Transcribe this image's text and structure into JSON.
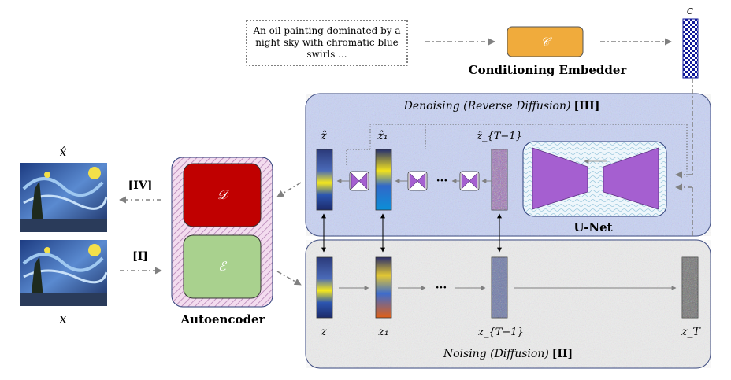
{
  "prompt": {
    "line1": "An oil painting dominated by a",
    "line2": "night sky with chromatic blue",
    "line3": "swirls ..."
  },
  "embedder": {
    "symbol": "𝒞",
    "label": "Conditioning Embedder",
    "output_symbol": "c"
  },
  "denoising": {
    "title": "Denoising (Reverse Diffusion)",
    "tag": "[III]",
    "latents": [
      "ẑ",
      "ẑ₁",
      "ẑ_{T−1}"
    ],
    "ellipsis": "···",
    "unet_label": "U-Net"
  },
  "noising": {
    "title": "Noising (Diffusion)",
    "tag": "[II]",
    "latents": [
      "z",
      "z₁",
      "z_{T−1}",
      "z_T"
    ],
    "ellipsis": "···"
  },
  "autoencoder": {
    "label": "Autoencoder",
    "decoder_symbol": "𝒟",
    "encoder_symbol": "ℰ",
    "decoder_color": "#c00000",
    "encoder_color": "#a9d18e"
  },
  "images": {
    "output_symbol": "x̂",
    "input_symbol": "x",
    "output_tag": "[IV]",
    "input_tag": "[I]"
  },
  "colors": {
    "embedder_fill": "#f0ab3c",
    "unet_fill": "#a55fd0",
    "checker": "#10189a",
    "denoise_panel": "#c9d3f5",
    "noise_panel": "#ececec"
  }
}
